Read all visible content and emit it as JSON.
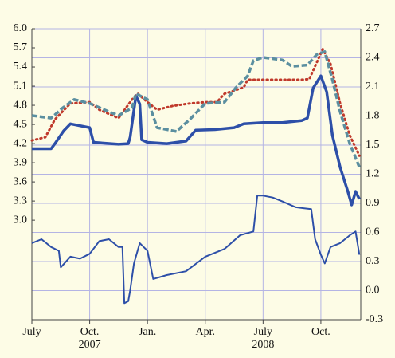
{
  "chart_data": {
    "type": "line",
    "xlim": [
      0,
      17.07
    ],
    "xticks": [
      {
        "value": 0,
        "label": "July"
      },
      {
        "value": 3,
        "label": "Oct."
      },
      {
        "value": 6,
        "label": "Jan."
      },
      {
        "value": 9,
        "label": "Apr."
      },
      {
        "value": 12,
        "label": "July"
      },
      {
        "value": 15,
        "label": "Oct."
      }
    ],
    "annotations": [
      {
        "text": "2007",
        "x": 3
      },
      {
        "text": "2008",
        "x": 12
      }
    ],
    "ylim": [
      1.44,
      6.0
    ],
    "yticks": [
      {
        "value": 3.0,
        "label": "3.0"
      },
      {
        "value": 3.3,
        "label": "3.3"
      },
      {
        "value": 3.6,
        "label": "3.6"
      },
      {
        "value": 3.9,
        "label": "3.9"
      },
      {
        "value": 4.2,
        "label": "4.2"
      },
      {
        "value": 4.5,
        "label": "4.5"
      },
      {
        "value": 4.8,
        "label": "4.8"
      },
      {
        "value": 5.1,
        "label": "5.1"
      },
      {
        "value": 5.4,
        "label": "5.4"
      },
      {
        "value": 5.7,
        "label": "5.7"
      },
      {
        "value": 6.0,
        "label": "6.0"
      }
    ],
    "y2lim": [
      -0.3,
      2.7
    ],
    "y2ticks": [
      {
        "value": -0.3,
        "label": "-0.3"
      },
      {
        "value": 0.0,
        "label": "0.0"
      },
      0.3,
      0.6,
      0.9,
      1.2,
      1.5,
      1.8,
      2.1,
      2.4,
      2.7
    ],
    "grid": true,
    "series": [
      {
        "color": "#2d4fa8",
        "style": "solid",
        "width": 3.5,
        "x": [
          0,
          1.0,
          1.2,
          1.65,
          2.0,
          3.0,
          3.2,
          4.5,
          5.0,
          5.1,
          5.4,
          5.6,
          5.7,
          6.0,
          7.0,
          8.0,
          8.5,
          9.5,
          10.5,
          11.0,
          12.0,
          13.0,
          14.0,
          14.3,
          14.6,
          15.0,
          15.3,
          15.6,
          16.0,
          16.4,
          16.6,
          16.8,
          17.0
        ],
        "values": [
          4.12,
          4.12,
          4.2,
          4.4,
          4.51,
          4.45,
          4.22,
          4.19,
          4.2,
          4.3,
          4.95,
          4.82,
          4.26,
          4.22,
          4.2,
          4.24,
          4.41,
          4.42,
          4.45,
          4.51,
          4.53,
          4.53,
          4.56,
          4.6,
          5.07,
          5.26,
          5.01,
          4.33,
          3.83,
          3.45,
          3.24,
          3.45,
          3.33
        ]
      },
      {
        "color": "#c0392b",
        "style": "dotted",
        "width": 3,
        "x": [
          0,
          0.7,
          1.2,
          2.0,
          3.0,
          3.5,
          4.5,
          5.2,
          5.5,
          6.0,
          6.5,
          7.3,
          8.2,
          9.0,
          9.6,
          10.0,
          11.0,
          11.2,
          13.0,
          14.0,
          14.4,
          14.8,
          15.1,
          15.5,
          16.0,
          16.5,
          17.0
        ],
        "values": [
          4.25,
          4.3,
          4.58,
          4.83,
          4.85,
          4.73,
          4.6,
          4.89,
          4.98,
          4.85,
          4.73,
          4.79,
          4.83,
          4.85,
          4.85,
          4.98,
          5.08,
          5.2,
          5.2,
          5.2,
          5.21,
          5.48,
          5.68,
          5.45,
          4.83,
          4.33,
          4.01
        ]
      },
      {
        "color": "#5b8fa0",
        "style": "dashed",
        "width": 3.5,
        "x": [
          0,
          1.0,
          1.6,
          2.2,
          3.0,
          4.0,
          4.5,
          5.2,
          5.4,
          6.0,
          6.5,
          7.5,
          8.2,
          9.0,
          10.0,
          10.6,
          11.2,
          11.5,
          12.0,
          13.0,
          13.5,
          14.3,
          14.8,
          15.2,
          15.6,
          16.0,
          16.5,
          17.0
        ],
        "values": [
          4.64,
          4.6,
          4.76,
          4.89,
          4.83,
          4.7,
          4.64,
          4.76,
          4.98,
          4.89,
          4.45,
          4.39,
          4.58,
          4.83,
          4.85,
          5.08,
          5.26,
          5.5,
          5.55,
          5.51,
          5.41,
          5.43,
          5.6,
          5.64,
          5.2,
          4.7,
          4.2,
          3.83
        ]
      },
      {
        "color": "#2d4fa8",
        "style": "solid",
        "width": 2,
        "axis": "y2",
        "x": [
          0,
          0.5,
          1.0,
          1.4,
          1.5,
          2.0,
          2.5,
          3.0,
          3.5,
          4.0,
          4.5,
          4.7,
          4.8,
          5.0,
          5.1,
          5.3,
          5.6,
          6.0,
          6.3,
          7.0,
          8.0,
          9.0,
          10.0,
          10.8,
          11.5,
          11.7,
          12.0,
          12.5,
          13.0,
          13.7,
          14.5,
          14.7,
          15.0,
          15.2,
          15.5,
          16.0,
          16.5,
          16.8,
          17.0
        ],
        "values": [
          0.49,
          0.53,
          0.45,
          0.41,
          0.24,
          0.35,
          0.33,
          0.38,
          0.51,
          0.53,
          0.45,
          0.45,
          -0.13,
          -0.11,
          0.0,
          0.28,
          0.49,
          0.41,
          0.12,
          0.16,
          0.2,
          0.35,
          0.43,
          0.57,
          0.61,
          0.98,
          0.98,
          0.96,
          0.92,
          0.86,
          0.84,
          0.53,
          0.37,
          0.28,
          0.45,
          0.49,
          0.57,
          0.61,
          0.37
        ]
      }
    ]
  }
}
